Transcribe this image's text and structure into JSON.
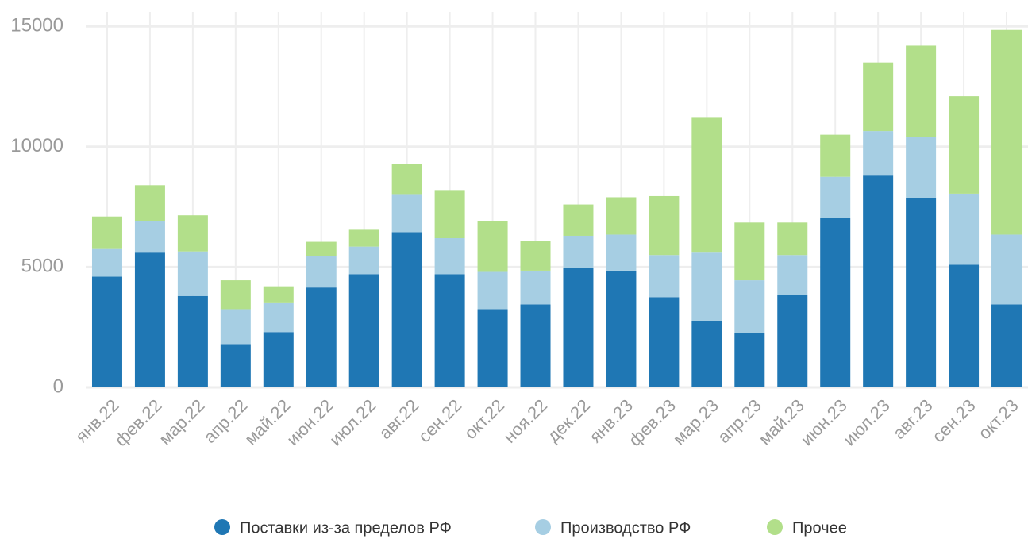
{
  "chart_data": {
    "type": "stacked_bar",
    "categories": [
      "янв.22",
      "фев.22",
      "мар.22",
      "апр.22",
      "май.22",
      "июн.22",
      "июл.22",
      "авг.22",
      "сен.22",
      "окт.22",
      "ноя.22",
      "дек.22",
      "янв.23",
      "фев.23",
      "мар.23",
      "апр.23",
      "май.23",
      "июн.23",
      "июл.23",
      "авг.23",
      "сен.23",
      "окт.23"
    ],
    "series": [
      {
        "name": "Поставки из-за пределов РФ",
        "color": "#1f77b4",
        "values": [
          4600,
          5600,
          3800,
          1800,
          2300,
          4150,
          4700,
          6450,
          4700,
          3250,
          3450,
          4950,
          4850,
          3750,
          2750,
          2250,
          3850,
          7050,
          8800,
          7850,
          5100,
          3450
        ]
      },
      {
        "name": "Производство РФ",
        "color": "#a6cee3",
        "values": [
          1150,
          1300,
          1850,
          1450,
          1200,
          1300,
          1150,
          1550,
          1500,
          1550,
          1400,
          1350,
          1500,
          1750,
          2850,
          2200,
          1650,
          1700,
          1850,
          2550,
          2950,
          2900
        ]
      },
      {
        "name": "Прочее",
        "color": "#b2df8a",
        "values": [
          1350,
          1500,
          1500,
          1200,
          700,
          600,
          700,
          1300,
          2000,
          2100,
          1250,
          1300,
          1550,
          2450,
          5600,
          2400,
          1350,
          1750,
          2850,
          3800,
          4050,
          8500
        ]
      }
    ],
    "ylim": [
      0,
      15600
    ],
    "yticks": [
      0,
      5000,
      10000,
      15000
    ],
    "grid": true,
    "legend": "bottom"
  }
}
